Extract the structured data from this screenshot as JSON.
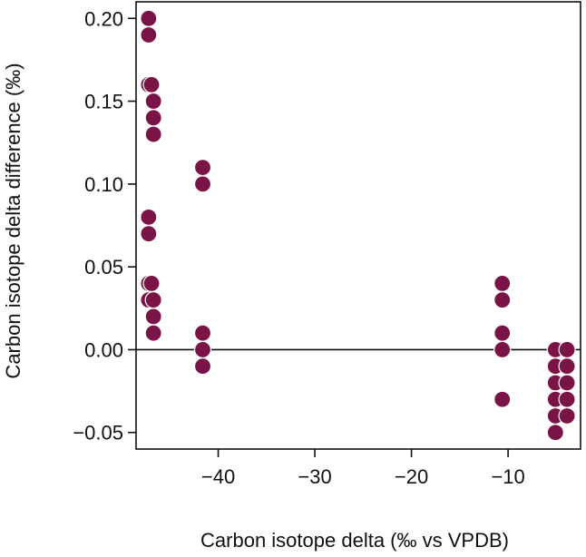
{
  "chart_data": {
    "type": "scatter",
    "xlabel": "Carbon isotope delta (‰ vs VPDB)",
    "ylabel": "Carbon isotope delta difference (‰)",
    "xlim": [
      -48.5,
      -2.5
    ],
    "ylim": [
      -0.06,
      0.21
    ],
    "xticks": [
      -40,
      -30,
      -20,
      -10
    ],
    "xtick_labels": [
      "−40",
      "−30",
      "−20",
      "−10"
    ],
    "yticks": [
      -0.05,
      0.0,
      0.05,
      0.1,
      0.15,
      0.2
    ],
    "ytick_labels": [
      "−0.05",
      "0.00",
      "0.05",
      "0.10",
      "0.15",
      "0.20"
    ],
    "reference_line_y": 0,
    "grid": false,
    "marker_color": "#7a1346",
    "points": [
      {
        "x": -47.2,
        "y": 0.2
      },
      {
        "x": -47.2,
        "y": 0.19
      },
      {
        "x": -47.2,
        "y": 0.16
      },
      {
        "x": -46.9,
        "y": 0.16
      },
      {
        "x": -46.7,
        "y": 0.15
      },
      {
        "x": -46.7,
        "y": 0.14
      },
      {
        "x": -46.7,
        "y": 0.13
      },
      {
        "x": -47.2,
        "y": 0.08
      },
      {
        "x": -47.2,
        "y": 0.07
      },
      {
        "x": -47.2,
        "y": 0.04
      },
      {
        "x": -46.9,
        "y": 0.04
      },
      {
        "x": -47.2,
        "y": 0.03
      },
      {
        "x": -46.7,
        "y": 0.03
      },
      {
        "x": -46.7,
        "y": 0.02
      },
      {
        "x": -46.7,
        "y": 0.01
      },
      {
        "x": -41.6,
        "y": 0.11
      },
      {
        "x": -41.6,
        "y": 0.1
      },
      {
        "x": -41.6,
        "y": 0.01
      },
      {
        "x": -41.6,
        "y": 0.0
      },
      {
        "x": -41.6,
        "y": -0.01
      },
      {
        "x": -10.6,
        "y": 0.04
      },
      {
        "x": -10.6,
        "y": 0.03
      },
      {
        "x": -10.6,
        "y": 0.01
      },
      {
        "x": -10.6,
        "y": 0.0
      },
      {
        "x": -10.6,
        "y": -0.03
      },
      {
        "x": -5.1,
        "y": 0.0
      },
      {
        "x": -5.1,
        "y": -0.01
      },
      {
        "x": -5.1,
        "y": -0.02
      },
      {
        "x": -5.1,
        "y": -0.03
      },
      {
        "x": -5.1,
        "y": -0.04
      },
      {
        "x": -5.1,
        "y": -0.05
      },
      {
        "x": -3.9,
        "y": 0.0
      },
      {
        "x": -3.9,
        "y": -0.01
      },
      {
        "x": -3.9,
        "y": -0.02
      },
      {
        "x": -3.9,
        "y": -0.03
      },
      {
        "x": -3.9,
        "y": -0.04
      }
    ]
  }
}
